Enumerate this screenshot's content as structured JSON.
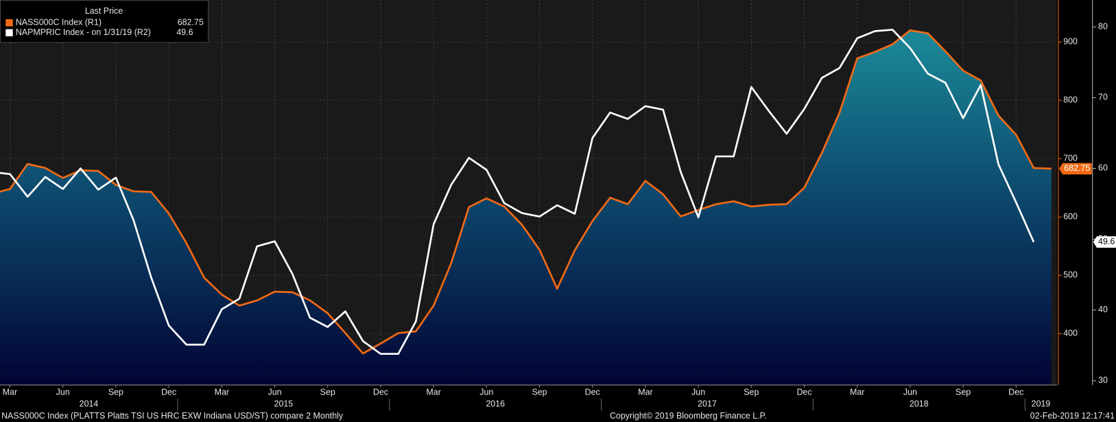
{
  "chart_data": {
    "type": "line",
    "legend_title": "Last Price",
    "footer_left": "NASS000C Index (PLATTS Platts TSI US HRC EXW Indiana USD/ST) compare 2  Monthly",
    "footer_center": "Copyright© 2019 Bloomberg Finance L.P.",
    "footer_right": "02-Feb-2019 12:17:41",
    "x": [
      "2014-02",
      "2014-03",
      "2014-04",
      "2014-05",
      "2014-06",
      "2014-07",
      "2014-08",
      "2014-09",
      "2014-10",
      "2014-11",
      "2014-12",
      "2015-01",
      "2015-02",
      "2015-03",
      "2015-04",
      "2015-05",
      "2015-06",
      "2015-07",
      "2015-08",
      "2015-09",
      "2015-10",
      "2015-11",
      "2015-12",
      "2016-01",
      "2016-02",
      "2016-03",
      "2016-04",
      "2016-05",
      "2016-06",
      "2016-07",
      "2016-08",
      "2016-09",
      "2016-10",
      "2016-11",
      "2016-12",
      "2017-01",
      "2017-02",
      "2017-03",
      "2017-04",
      "2017-05",
      "2017-06",
      "2017-07",
      "2017-08",
      "2017-09",
      "2017-10",
      "2017-11",
      "2017-12",
      "2018-01",
      "2018-02",
      "2018-03",
      "2018-04",
      "2018-05",
      "2018-06",
      "2018-07",
      "2018-08",
      "2018-09",
      "2018-10",
      "2018-11",
      "2018-12",
      "2019-01",
      "2019-02"
    ],
    "series": [
      {
        "name": "NASS000C Index  (R1)",
        "color": "#f26a14",
        "area": true,
        "values": [
          640,
          648,
          691,
          684,
          667,
          680,
          679,
          655,
          644,
          643,
          606,
          555,
          496,
          467,
          448,
          457,
          472,
          471,
          457,
          435,
          401,
          366,
          383,
          401,
          404,
          448,
          521,
          617,
          632,
          618,
          587,
          544,
          477,
          543,
          593,
          633,
          622,
          662,
          639,
          601,
          612,
          622,
          627,
          618,
          621,
          622,
          650,
          710,
          779,
          872,
          883,
          896,
          920,
          915,
          884,
          851,
          834,
          774,
          741,
          684,
          682.75
        ]
      },
      {
        "name": "NAPMPRIC Index -  on 1/31/19  (R2)",
        "color": "#ffffff",
        "axis": "y2",
        "values": [
          59.5,
          59.2,
          56.0,
          58.8,
          57.1,
          60.0,
          57.0,
          58.7,
          52.7,
          44.6,
          37.8,
          35.1,
          35.1,
          40.1,
          41.6,
          49.0,
          49.7,
          45.1,
          38.9,
          37.6,
          39.8,
          35.6,
          33.8,
          33.8,
          38.4,
          52.1,
          57.7,
          61.5,
          59.8,
          55.1,
          53.7,
          53.2,
          54.8,
          53.6,
          64.3,
          67.9,
          67.0,
          68.8,
          68.3,
          59.5,
          53.1,
          61.7,
          61.7,
          71.5,
          68.1,
          64.9,
          68.4,
          72.8,
          74.2,
          78.4,
          79.4,
          79.6,
          77.0,
          73.4,
          72.1,
          67.1,
          71.8,
          60.6,
          55.2,
          49.6,
          null
        ]
      }
    ],
    "ylim": [
      312,
      972
    ],
    "yticks": [
      400,
      500,
      600,
      700,
      800,
      900
    ],
    "y2lim": [
      29.4,
      83.8
    ],
    "y2ticks": [
      30,
      40,
      50,
      60,
      70,
      80
    ],
    "xticks": [
      {
        "value": "2014-03",
        "label": "Mar"
      },
      {
        "value": "2014-06",
        "label": "Jun"
      },
      {
        "value": "2014-09",
        "label": "Sep"
      },
      {
        "value": "2014-12",
        "label": "Dec"
      },
      {
        "value": "2015-03",
        "label": "Mar"
      },
      {
        "value": "2015-06",
        "label": "Jun"
      },
      {
        "value": "2015-09",
        "label": "Sep"
      },
      {
        "value": "2015-12",
        "label": "Dec"
      },
      {
        "value": "2016-03",
        "label": "Mar"
      },
      {
        "value": "2016-06",
        "label": "Jun"
      },
      {
        "value": "2016-09",
        "label": "Sep"
      },
      {
        "value": "2016-12",
        "label": "Dec"
      },
      {
        "value": "2017-03",
        "label": "Mar"
      },
      {
        "value": "2017-06",
        "label": "Jun"
      },
      {
        "value": "2017-09",
        "label": "Sep"
      },
      {
        "value": "2017-12",
        "label": "Dec"
      },
      {
        "value": "2018-03",
        "label": "Mar"
      },
      {
        "value": "2018-06",
        "label": "Jun"
      },
      {
        "value": "2018-09",
        "label": "Sep"
      },
      {
        "value": "2018-12",
        "label": "Dec"
      }
    ],
    "year_labels": [
      "2014",
      "2015",
      "2016",
      "2017",
      "2018",
      "2019"
    ],
    "grid": true
  }
}
